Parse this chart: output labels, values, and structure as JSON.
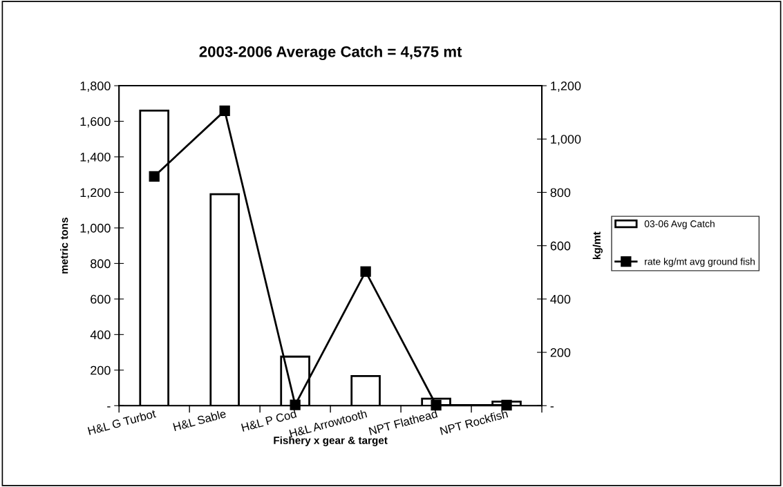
{
  "chart_data": {
    "type": "bar",
    "title": "2003-2006 Average Catch = 4,575 mt",
    "xlabel": "Fishery x gear & target",
    "ylabel": "metric tons",
    "y2label": "kg/mt",
    "categories": [
      "H&L G Turbot",
      "H&L Sable",
      "H&L P Cod",
      "H&L Arrowtooth",
      "NPT Flathead",
      "NPT Rockfish"
    ],
    "series": [
      {
        "name": "03-06 Avg Catch",
        "color": "#ffffff",
        "values": [
          1660,
          1190,
          276,
          167,
          39,
          23
        ]
      },
      {
        "name": "rate kg/mt avg ground fish",
        "type": "line",
        "axis": "y2",
        "color": "#000000",
        "marker": "square",
        "values": [
          860,
          1106,
          3,
          503,
          2,
          2
        ]
      }
    ],
    "ylim": [
      0,
      1800
    ],
    "yticks": [
      {
        "value": 0,
        "label": "-"
      },
      {
        "value": 200,
        "label": "200"
      },
      {
        "value": 400,
        "label": "400"
      },
      {
        "value": 600,
        "label": "600"
      },
      {
        "value": 800,
        "label": "800"
      },
      {
        "value": 1000,
        "label": "1,000"
      },
      {
        "value": 1200,
        "label": "1,200"
      },
      {
        "value": 1400,
        "label": "1,400"
      },
      {
        "value": 1600,
        "label": "1,600"
      },
      {
        "value": 1800,
        "label": "1,800"
      }
    ],
    "y2lim": [
      0,
      1200
    ],
    "y2ticks": [
      {
        "value": 0,
        "label": "-"
      },
      {
        "value": 200,
        "label": "200"
      },
      {
        "value": 400,
        "label": "400"
      },
      {
        "value": 600,
        "label": "600"
      },
      {
        "value": 800,
        "label": "800"
      },
      {
        "value": 1000,
        "label": "1,000"
      },
      {
        "value": 1200,
        "label": "1,200"
      }
    ],
    "grid": false,
    "legend": "right"
  }
}
